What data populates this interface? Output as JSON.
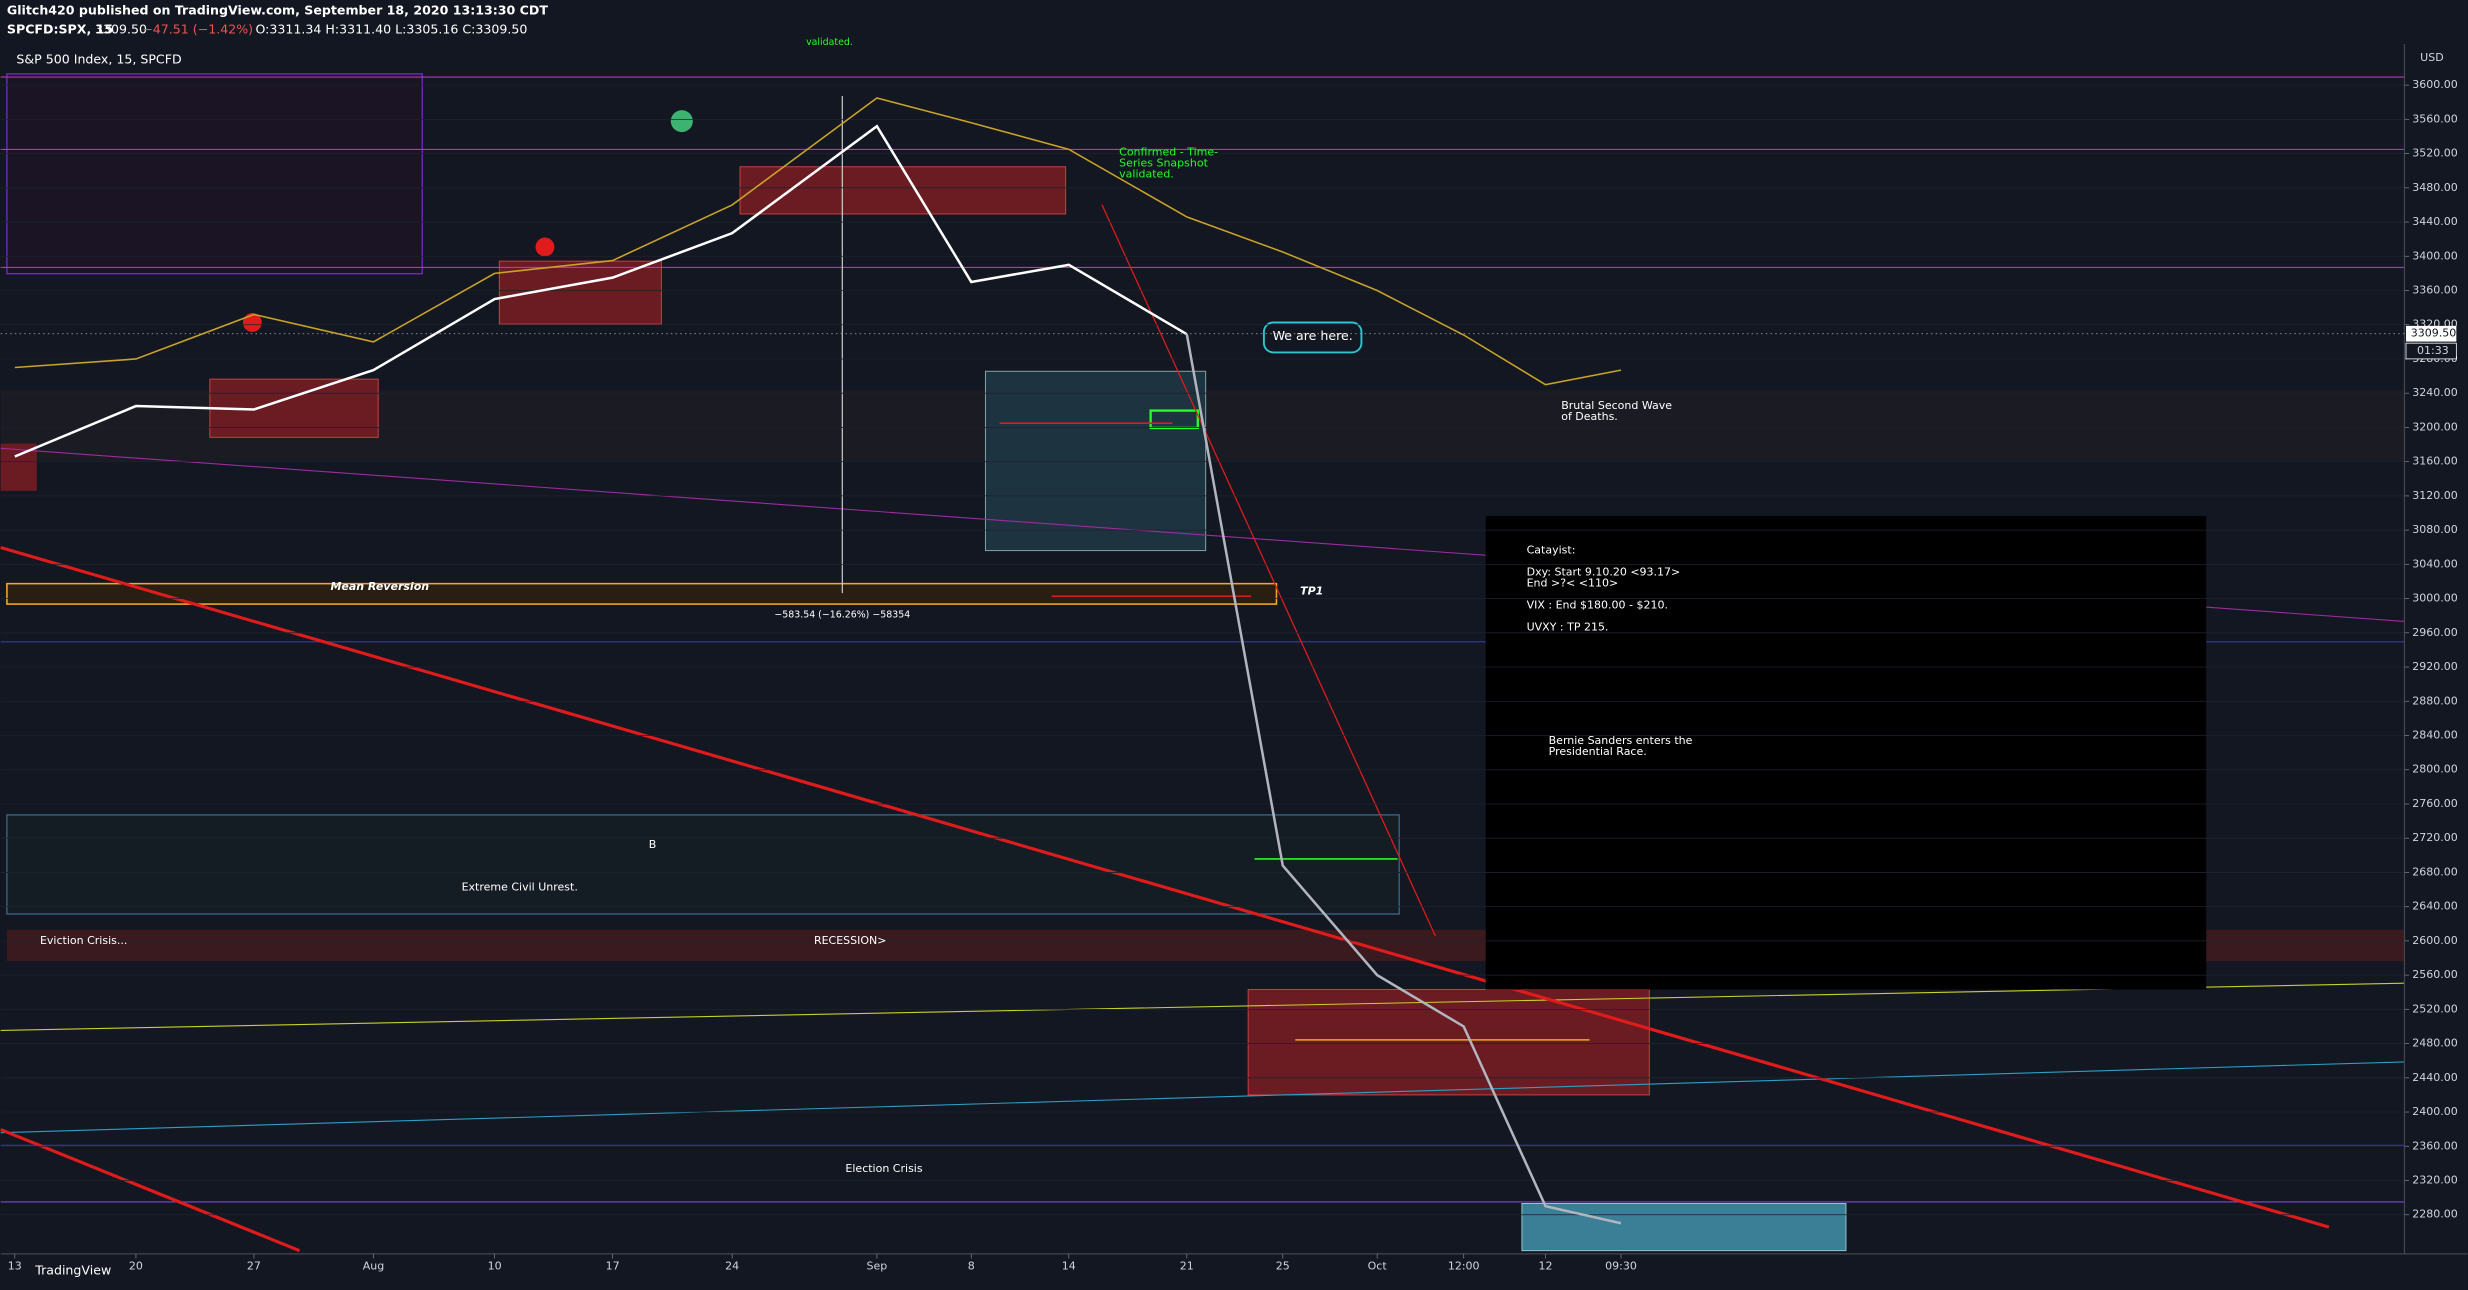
{
  "header": {
    "publisher": "Glitch420 published on TradingView.com, September 18, 2020 13:13:30 CDT",
    "symbol": "SPCFD:SPX, 15",
    "price": "3309.50",
    "change": "−47.51 (−1.42%)",
    "ohlc": "O:3311.34 H:3311.40 L:3305.16 C:3309.50"
  },
  "chart_data": {
    "type": "line",
    "title": "S&P 500 Index, 15, SPCFD",
    "currency": "USD",
    "categories": [
      "13",
      "20",
      "27",
      "Aug",
      "10",
      "17",
      "24",
      "Sep",
      "8",
      "14",
      "21",
      "25",
      "Oct",
      "12:00",
      "12",
      "09:30"
    ],
    "series": [
      {
        "color": "#ffffff",
        "values": [
          3166,
          3225,
          3221,
          3267,
          3350,
          3375,
          3427,
          3552,
          3370,
          3390,
          3309,
          null,
          null,
          null,
          null,
          null
        ]
      },
      {
        "color": "#b2b5be",
        "values": [
          null,
          null,
          null,
          null,
          null,
          null,
          null,
          null,
          null,
          null,
          3309,
          2688,
          2560,
          2500,
          2290,
          2270
        ]
      },
      {
        "color": "#c9a227",
        "values": [
          3270,
          3280,
          3332,
          3300,
          3380,
          3395,
          3460,
          3585,
          3556,
          3525,
          3446,
          3405,
          3360,
          3308,
          3250,
          3267
        ]
      }
    ],
    "ylim": [
      2238,
      3648
    ],
    "yticks": [
      {
        "value": 3600,
        "label": "3600.00"
      },
      {
        "value": 3560,
        "label": "3560.00"
      },
      {
        "value": 3520,
        "label": "3520.00"
      },
      {
        "value": 3480,
        "label": "3480.00"
      },
      {
        "value": 3440,
        "label": "3440.00"
      },
      {
        "value": 3400,
        "label": "3400.00"
      },
      {
        "value": 3360,
        "label": "3360.00"
      },
      {
        "value": 3320,
        "label": "3320.00"
      },
      {
        "value": 3280,
        "label": "3280.00"
      },
      {
        "value": 3240,
        "label": "3240.00"
      },
      {
        "value": 3200,
        "label": "3200.00"
      },
      {
        "value": 3160,
        "label": "3160.00"
      },
      {
        "value": 3120,
        "label": "3120.00"
      },
      {
        "value": 3080,
        "label": "3080.00"
      },
      {
        "value": 3040,
        "label": "3040.00"
      },
      {
        "value": 3000,
        "label": "3000.00"
      },
      {
        "value": 2960,
        "label": "2960.00"
      },
      {
        "value": 2920,
        "label": "2920.00"
      },
      {
        "value": 2880,
        "label": "2880.00"
      },
      {
        "value": 2840,
        "label": "2840.00"
      },
      {
        "value": 2800,
        "label": "2800.00"
      },
      {
        "value": 2760,
        "label": "2760.00"
      },
      {
        "value": 2720,
        "label": "2720.00"
      },
      {
        "value": 2680,
        "label": "2680.00"
      },
      {
        "value": 2640,
        "label": "2640.00"
      },
      {
        "value": 2600,
        "label": "2600.00"
      },
      {
        "value": 2560,
        "label": "2560.00"
      },
      {
        "value": 2520,
        "label": "2520.00"
      },
      {
        "value": 2480,
        "label": "2480.00"
      },
      {
        "value": 2440,
        "label": "2440.00"
      },
      {
        "value": 2400,
        "label": "2400.00"
      },
      {
        "value": 2360,
        "label": "2360.00"
      },
      {
        "value": 2320,
        "label": "2320.00"
      },
      {
        "value": 2280,
        "label": "2280.00"
      }
    ],
    "last_price": {
      "value": 3309.5,
      "label": "3309.50"
    },
    "countdown": "01:33",
    "annotations": {
      "validated_top": "validated.",
      "confirmed": [
        "Confirmed - Time-",
        "Series Snapshot",
        "validated."
      ],
      "we_are_here": "We are here.",
      "second_wave": [
        "Brutal Second Wave",
        "of Deaths."
      ],
      "mean_reversion": "Mean Reversion",
      "tp1": "TP1",
      "measure": "−583.54 (−16.26%) −58354",
      "b": "B",
      "civil_unrest": "Extreme Civil Unrest.",
      "eviction": "Eviction Crisis...",
      "recession": "RECESSION>",
      "election": "Election Crisis",
      "bernie": [
        "Bernie Sanders enters the",
        "Presidential Race."
      ],
      "catalyst": [
        "Catayist:",
        "Dxy: Start 9.10.20 <93.17>",
        "End >?< <110>",
        "VIX : End $180.00 - $210.",
        "UVXY : TP 215."
      ]
    }
  },
  "footer": {
    "brand": "TradingView"
  }
}
